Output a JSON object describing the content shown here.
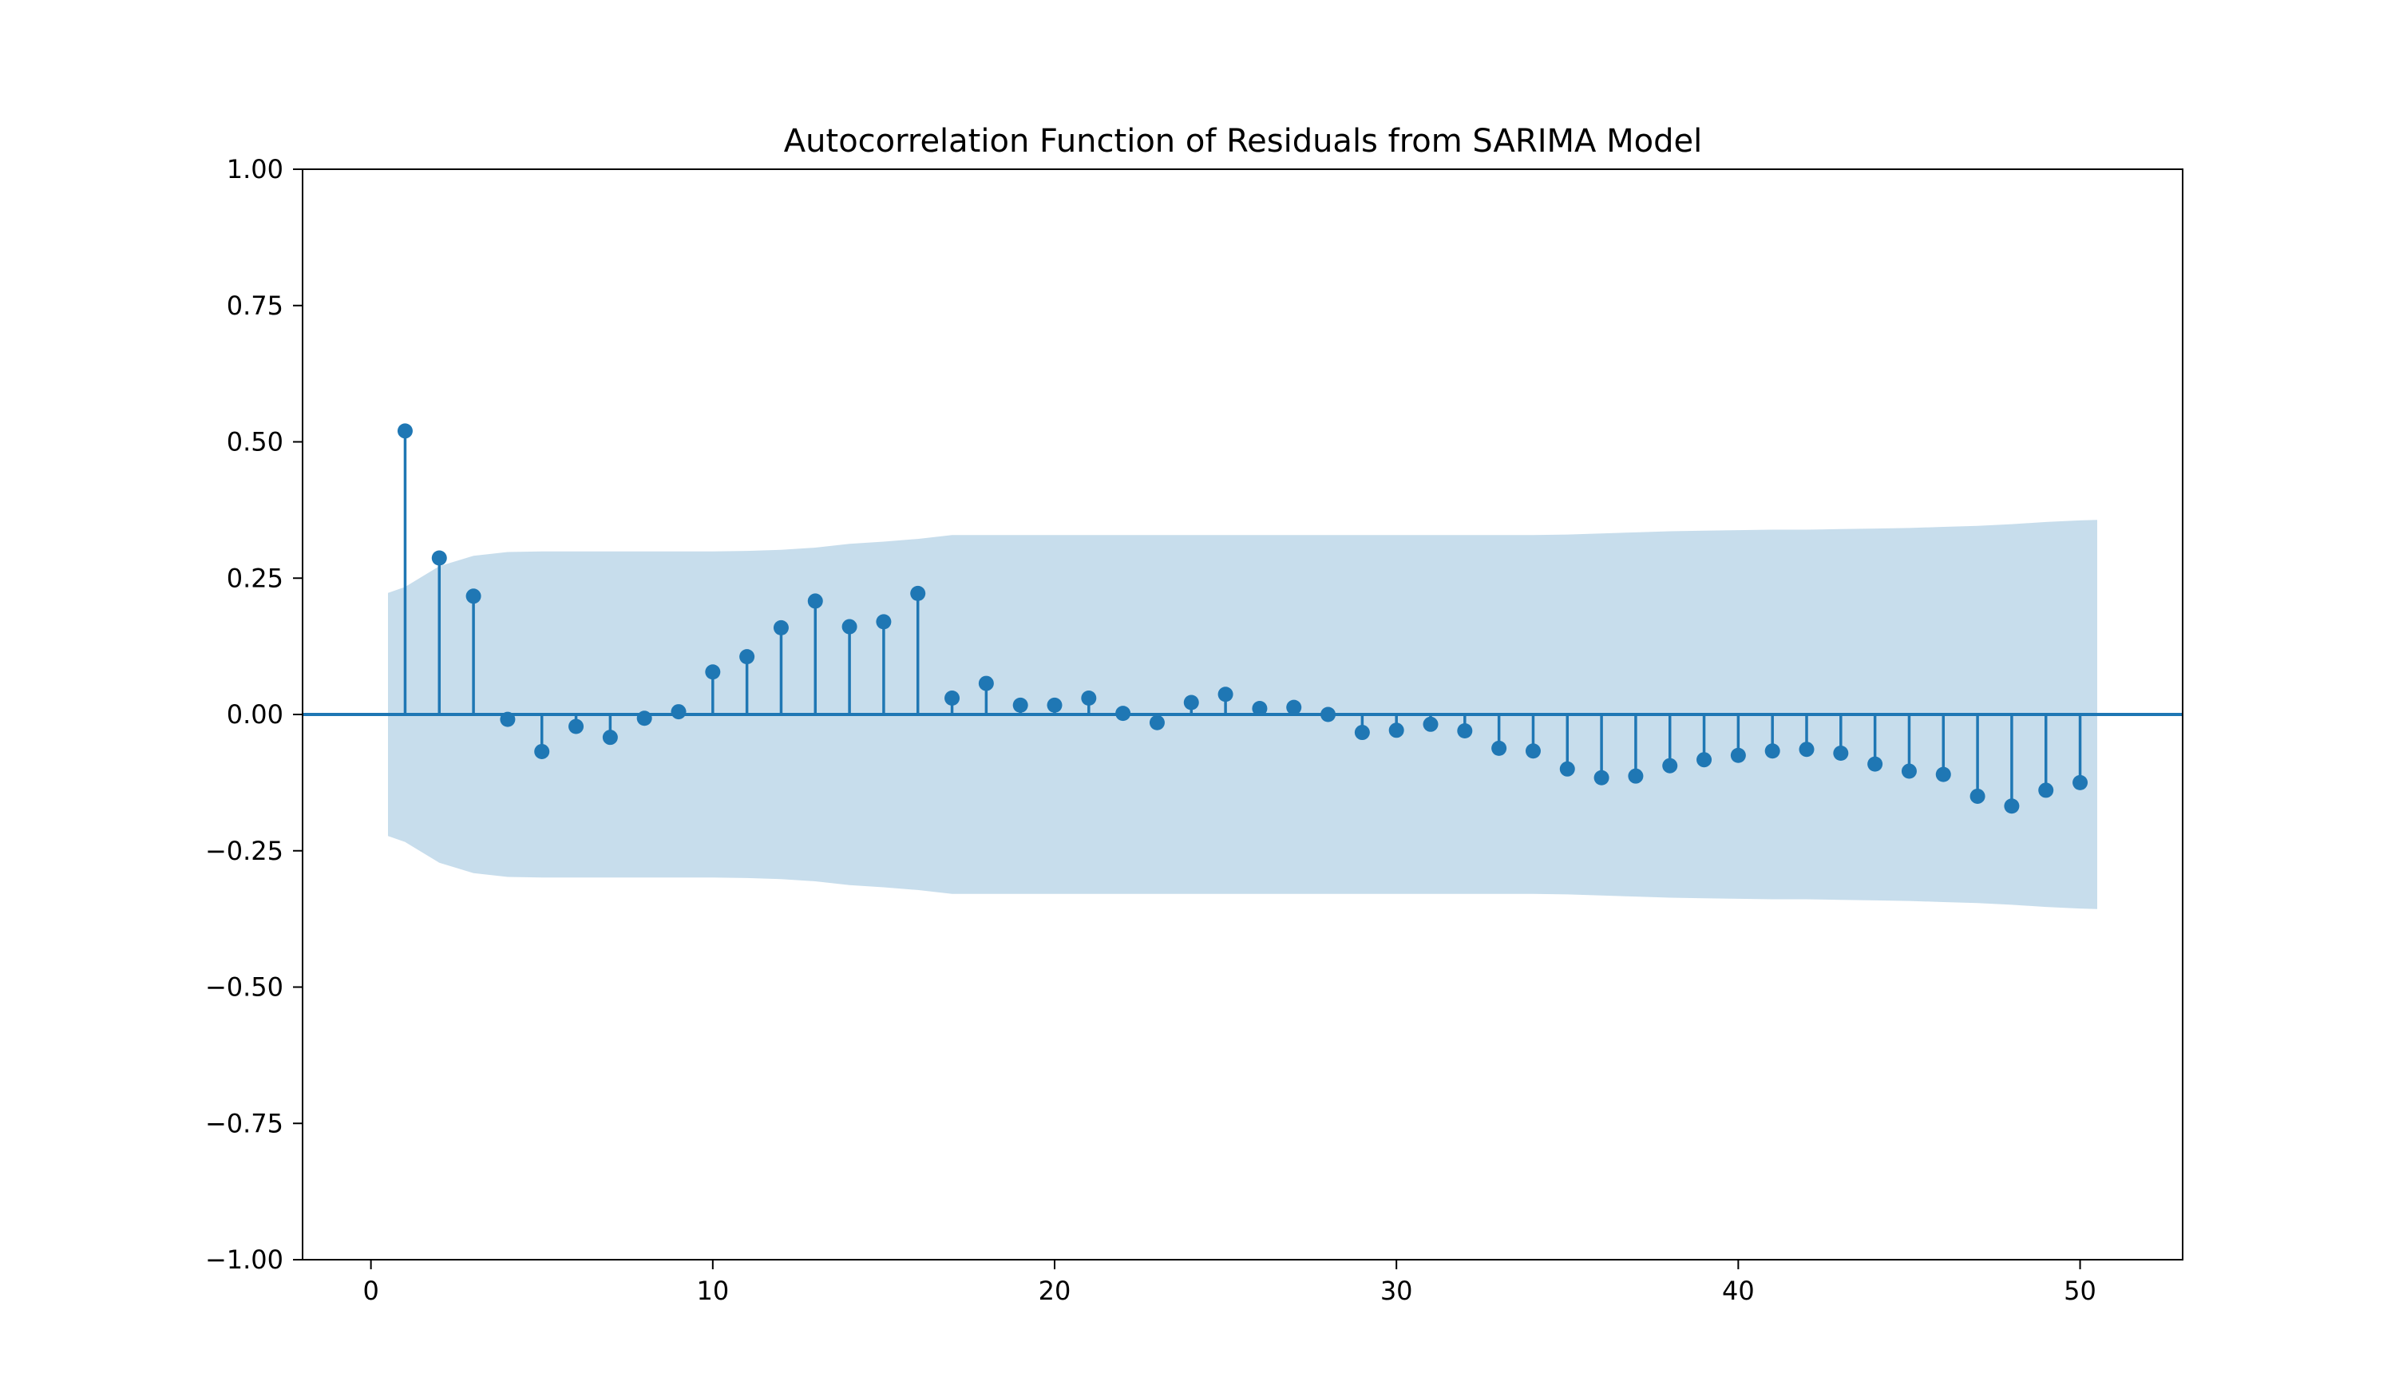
{
  "chart_data": {
    "type": "stem",
    "title": "Autocorrelation Function of Residuals from SARIMA Model",
    "xlabel": "",
    "ylabel": "",
    "xlim": [
      -2,
      53
    ],
    "ylim": [
      -1.0,
      1.0
    ],
    "x_ticks": [
      0,
      10,
      20,
      30,
      40,
      50
    ],
    "x_tick_labels": [
      "0",
      "10",
      "20",
      "30",
      "40",
      "50"
    ],
    "y_ticks": [
      -1.0,
      -0.75,
      -0.5,
      -0.25,
      0.0,
      0.25,
      0.5,
      0.75,
      1.0
    ],
    "y_tick_labels": [
      "−1.00",
      "−0.75",
      "−0.50",
      "−0.25",
      "0.00",
      "0.25",
      "0.50",
      "0.75",
      "1.00"
    ],
    "grid": false,
    "lags": [
      1,
      2,
      3,
      4,
      5,
      6,
      7,
      8,
      9,
      10,
      11,
      12,
      13,
      14,
      15,
      16,
      17,
      18,
      19,
      20,
      21,
      22,
      23,
      24,
      25,
      26,
      27,
      28,
      29,
      30,
      31,
      32,
      33,
      34,
      35,
      36,
      37,
      38,
      39,
      40,
      41,
      42,
      43,
      44,
      45,
      46,
      47,
      48,
      49,
      50
    ],
    "acf": [
      0.52,
      0.287,
      0.217,
      -0.009,
      -0.068,
      -0.022,
      -0.042,
      -0.007,
      0.005,
      0.078,
      0.106,
      0.159,
      0.208,
      0.161,
      0.17,
      0.222,
      0.03,
      0.057,
      0.017,
      0.017,
      0.03,
      0.002,
      -0.015,
      0.022,
      0.037,
      0.011,
      0.013,
      0.0,
      -0.033,
      -0.029,
      -0.018,
      -0.03,
      -0.062,
      -0.067,
      -0.1,
      -0.116,
      -0.113,
      -0.094,
      -0.083,
      -0.075,
      -0.067,
      -0.064,
      -0.071,
      -0.091,
      -0.104,
      -0.11,
      -0.15,
      -0.168,
      -0.139,
      -0.125
    ],
    "confidence_band": {
      "x": [
        0.5,
        1,
        2,
        3,
        4,
        5,
        6,
        7,
        8,
        9,
        10,
        11,
        12,
        13,
        14,
        15,
        16,
        17,
        18,
        19,
        20,
        21,
        22,
        23,
        24,
        25,
        26,
        27,
        28,
        29,
        30,
        31,
        32,
        33,
        34,
        35,
        36,
        37,
        38,
        39,
        40,
        41,
        42,
        43,
        44,
        45,
        46,
        47,
        48,
        49,
        50,
        50.5
      ],
      "upper": [
        0.223,
        0.234,
        0.272,
        0.291,
        0.298,
        0.299,
        0.299,
        0.299,
        0.299,
        0.299,
        0.299,
        0.3,
        0.302,
        0.306,
        0.313,
        0.317,
        0.322,
        0.329,
        0.329,
        0.329,
        0.329,
        0.329,
        0.329,
        0.329,
        0.329,
        0.329,
        0.329,
        0.329,
        0.329,
        0.329,
        0.329,
        0.329,
        0.329,
        0.329,
        0.329,
        0.33,
        0.332,
        0.334,
        0.336,
        0.337,
        0.338,
        0.339,
        0.339,
        0.34,
        0.341,
        0.342,
        0.344,
        0.346,
        0.349,
        0.353,
        0.356,
        0.357
      ]
    },
    "colors": {
      "stem": "#1f77b4",
      "band": "#1f77b4",
      "band_opacity": 0.25
    }
  }
}
